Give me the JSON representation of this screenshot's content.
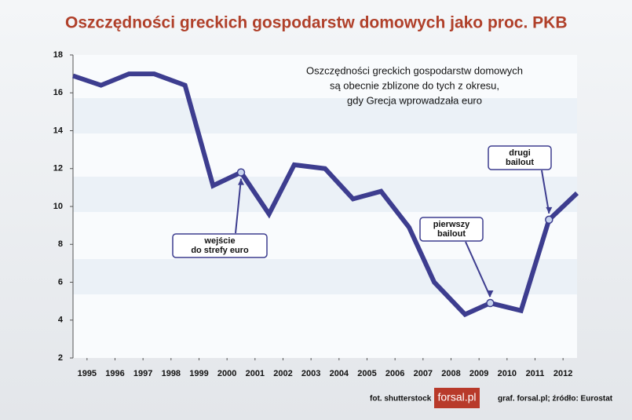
{
  "chart_data": {
    "type": "line",
    "title": "Oszczędności greckich gospodarstw domowych jako proc. PKB",
    "subtitle": [
      "Oszczędności greckich gospodarstw domowych",
      "są obecnie zblizone do tych z okresu,",
      "gdy Grecja wprowadzała euro"
    ],
    "x": [
      1994.5,
      1995.5,
      1996.5,
      1997.4,
      1998.5,
      1999.5,
      2000.5,
      2001.5,
      2002.4,
      2003.5,
      2004.5,
      2005.5,
      2006.5,
      2007.4,
      2008.5,
      2009.4,
      2010.5,
      2011.5,
      2012.5
    ],
    "series": [
      {
        "color": "#3d3d8f",
        "values": [
          16.9,
          16.4,
          17.0,
          17.0,
          16.4,
          11.1,
          11.8,
          9.6,
          12.2,
          12.0,
          10.4,
          10.8,
          8.9,
          6.0,
          4.3,
          4.9,
          4.5,
          9.3,
          10.7
        ]
      }
    ],
    "xlim": [
      1994.5,
      2012.5
    ],
    "xticks": [
      1995,
      1996,
      1997,
      1998,
      1999,
      2000,
      2001,
      2002,
      2003,
      2004,
      2005,
      2006,
      2007,
      2008,
      2009,
      2010,
      2011,
      2012
    ],
    "ylim": [
      2,
      18
    ],
    "yticks": [
      2,
      4,
      6,
      8,
      10,
      12,
      14,
      16,
      18
    ],
    "grid": false,
    "annotations": [
      {
        "text": [
          "wejście",
          "do strefy euro"
        ]
      },
      {
        "text": [
          "pierwszy",
          "bailout"
        ]
      },
      {
        "text": [
          "drugi",
          "bailout"
        ]
      }
    ],
    "credits": {
      "photo": "fot. shutterstock",
      "logo": "forsal.pl",
      "source": "graf. forsal.pl;  źródło: Eurostat"
    }
  }
}
